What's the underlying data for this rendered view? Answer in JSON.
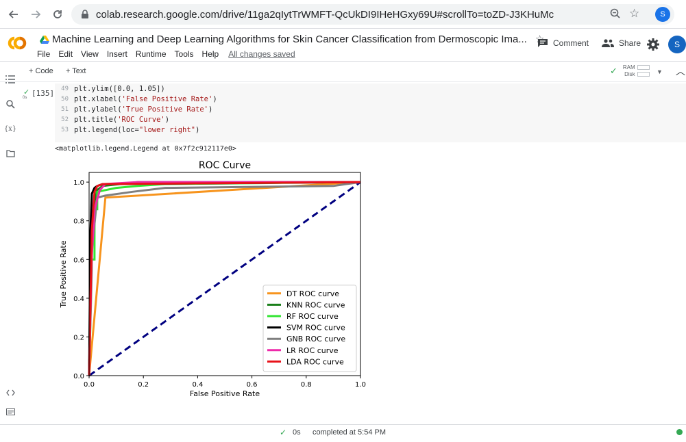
{
  "browser": {
    "url": "colab.research.google.com/drive/11ga2qIytTrWMFT-QcUkDI9IHeHGxy69U#scrollTo=toZD-J3KHuMc",
    "profile_initial": "S"
  },
  "notebook": {
    "title": "Machine Learning and Deep Learning Algorithms for Skin Cancer Classification from Dermoscopic Ima...",
    "menu": [
      "File",
      "Edit",
      "View",
      "Insert",
      "Runtime",
      "Tools",
      "Help"
    ],
    "saved_status": "All changes saved",
    "comment_label": "Comment",
    "share_label": "Share",
    "user_initial": "S"
  },
  "toolbar": {
    "add_code": "+ Code",
    "add_text": "+ Text",
    "ram_label": "RAM",
    "disk_label": "Disk"
  },
  "cell": {
    "exec_count": "[135]",
    "exec_time": "0s",
    "lines": [
      {
        "no": "49",
        "pre": "plt.ylim([0.0, 1.05])",
        "str": "",
        "post": ""
      },
      {
        "no": "50",
        "pre": "plt.xlabel(",
        "str": "'False Positive Rate'",
        "post": ")"
      },
      {
        "no": "51",
        "pre": "plt.ylabel(",
        "str": "'True Positive Rate'",
        "post": ")"
      },
      {
        "no": "52",
        "pre": "plt.title(",
        "str": "'ROC Curve'",
        "post": ")"
      },
      {
        "no": "53",
        "pre": "plt.legend(loc=",
        "str": "\"lower right\"",
        "post": ")"
      }
    ],
    "output_text": "<matplotlib.legend.Legend at 0x7f2c912117e0>"
  },
  "chart_data": {
    "type": "line",
    "title": "ROC Curve",
    "xlabel": "False Positive Rate",
    "ylabel": "True Positive Rate",
    "xlim": [
      0.0,
      1.0
    ],
    "ylim": [
      0.0,
      1.05
    ],
    "xticks": [
      "0.0",
      "0.2",
      "0.4",
      "0.6",
      "0.8",
      "1.0"
    ],
    "yticks": [
      "0.0",
      "0.2",
      "0.4",
      "0.6",
      "0.8",
      "1.0"
    ],
    "legend_position": "lower-right",
    "series": [
      {
        "name": "DT ROC curve",
        "color": "#f7941d",
        "x": [
          0.0,
          0.06,
          0.88,
          1.0
        ],
        "y": [
          0.0,
          0.92,
          0.99,
          1.0
        ]
      },
      {
        "name": "KNN ROC curve",
        "color": "#1a7f1a",
        "x": [
          0.0,
          0.01,
          0.02,
          0.03,
          0.05,
          0.18,
          1.0
        ],
        "y": [
          0.0,
          0.7,
          0.9,
          0.96,
          0.98,
          1.0,
          1.0
        ]
      },
      {
        "name": "RF ROC curve",
        "color": "#33e533",
        "x": [
          0.0,
          0.01,
          0.01,
          0.02,
          0.02,
          0.03,
          0.03,
          0.1,
          0.18,
          0.28,
          1.0
        ],
        "y": [
          0.0,
          0.55,
          0.6,
          0.6,
          0.86,
          0.86,
          0.95,
          0.97,
          0.98,
          0.99,
          1.0
        ]
      },
      {
        "name": "SVM ROC curve",
        "color": "#000000",
        "x": [
          0.0,
          0.005,
          0.005,
          0.01,
          0.02,
          0.03,
          0.05,
          1.0
        ],
        "y": [
          0.0,
          0.73,
          0.75,
          0.94,
          0.97,
          0.98,
          0.99,
          1.0
        ]
      },
      {
        "name": "GNB ROC curve",
        "color": "#7f7f7f",
        "x": [
          0.0,
          0.01,
          0.03,
          0.06,
          0.16,
          0.28,
          0.9,
          1.0
        ],
        "y": [
          0.0,
          0.65,
          0.92,
          0.93,
          0.95,
          0.97,
          0.98,
          1.0
        ]
      },
      {
        "name": "LR ROC curve",
        "color": "#ee2aaa",
        "x": [
          0.0,
          0.01,
          0.02,
          0.04,
          0.06,
          0.18,
          1.0
        ],
        "y": [
          0.0,
          0.62,
          0.86,
          0.96,
          0.99,
          1.0,
          1.0
        ]
      },
      {
        "name": "LDA ROC curve",
        "color": "#e8121a",
        "x": [
          0.0,
          0.01,
          0.02,
          0.03,
          0.05,
          1.0
        ],
        "y": [
          0.0,
          0.75,
          0.95,
          0.98,
          0.99,
          1.0
        ]
      }
    ],
    "diagonal_color": "#000080"
  },
  "statusbar": {
    "time": "0s",
    "text": "completed at 5:54 PM"
  }
}
